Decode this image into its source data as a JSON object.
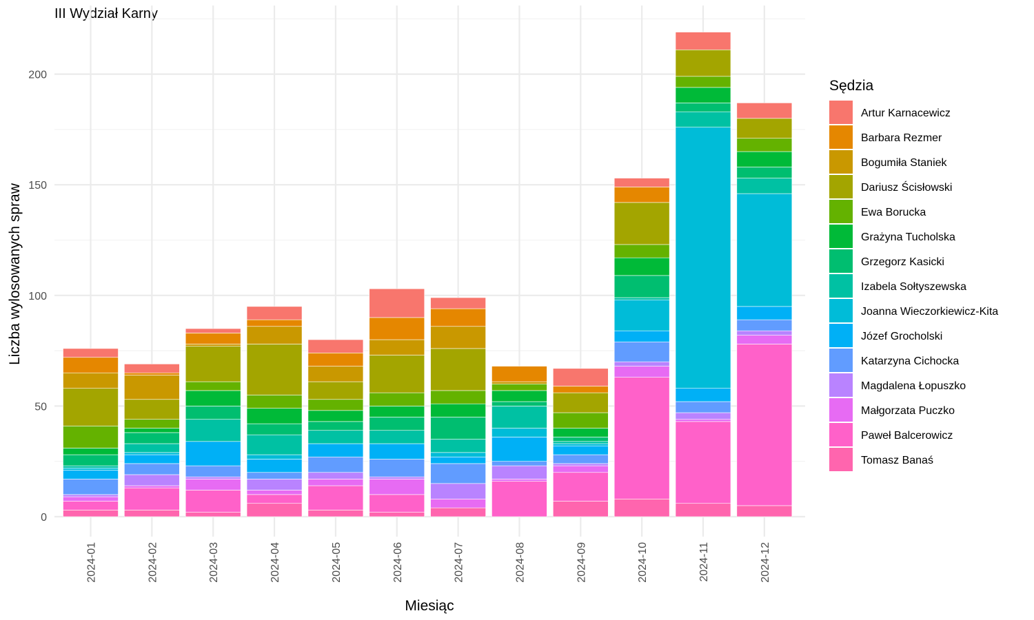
{
  "chart_data": {
    "type": "bar",
    "stacked": true,
    "title": "III Wydział Karny",
    "xlabel": "Miesiąc",
    "ylabel": "Liczba wylosowanych spraw",
    "ylim": [
      0,
      220
    ],
    "yticks": [
      0,
      50,
      100,
      150,
      200
    ],
    "grid": true,
    "legend_position": "right",
    "legend_title": "Sędzia",
    "categories": [
      "2024-01",
      "2024-02",
      "2024-03",
      "2024-04",
      "2024-05",
      "2024-06",
      "2024-07",
      "2024-08",
      "2024-09",
      "2024-10",
      "2024-11",
      "2024-12"
    ],
    "series": [
      {
        "name": "Tomasz Banaś",
        "color": "#FF65AE",
        "values": [
          3,
          3,
          2,
          6,
          3,
          2,
          4,
          0,
          7,
          8,
          6,
          5
        ]
      },
      {
        "name": "Paweł Balcerowicz",
        "color": "#FF61C9",
        "values": [
          4,
          10,
          10,
          4,
          11,
          8,
          0,
          16,
          13,
          55,
          37,
          73
        ]
      },
      {
        "name": "Małgorzata Puczko",
        "color": "#E76BF3",
        "values": [
          2,
          1,
          5,
          2,
          3,
          7,
          4,
          1,
          3,
          5,
          1,
          4
        ]
      },
      {
        "name": "Magdalena Łopuszko",
        "color": "#B983FF",
        "values": [
          1,
          5,
          1,
          5,
          3,
          1,
          7,
          6,
          1,
          2,
          3,
          2
        ]
      },
      {
        "name": "Katarzyna Cichocka",
        "color": "#619CFF",
        "values": [
          7,
          5,
          5,
          3,
          7,
          8,
          9,
          2,
          4,
          9,
          5,
          5
        ]
      },
      {
        "name": "Józef Grocholski",
        "color": "#00B0F6",
        "values": [
          4,
          4,
          11,
          6,
          6,
          7,
          3,
          11,
          4,
          5,
          6,
          6
        ]
      },
      {
        "name": "Joanna Wieczorkiewicz-Kita",
        "color": "#00BCD8",
        "values": [
          1,
          1,
          0,
          2,
          0,
          0,
          2,
          4,
          1,
          14,
          118,
          51
        ]
      },
      {
        "name": "Izabela Sołtyszewska",
        "color": "#00C1A3",
        "values": [
          1,
          4,
          10,
          9,
          6,
          6,
          6,
          10,
          1,
          1,
          7,
          7
        ]
      },
      {
        "name": "Grzegorz Kasicki",
        "color": "#00BE70",
        "values": [
          5,
          5,
          6,
          5,
          4,
          6,
          10,
          2,
          2,
          10,
          4,
          5
        ]
      },
      {
        "name": "Grażyna Tucholska",
        "color": "#00BA38",
        "values": [
          3,
          2,
          7,
          7,
          5,
          5,
          6,
          5,
          4,
          8,
          7,
          7
        ]
      },
      {
        "name": "Ewa Borucka",
        "color": "#64B200",
        "values": [
          10,
          4,
          4,
          6,
          5,
          6,
          6,
          3,
          7,
          6,
          5,
          6
        ]
      },
      {
        "name": "Dariusz Ścisłowski",
        "color": "#A3A500",
        "values": [
          17,
          9,
          16,
          23,
          8,
          17,
          19,
          0,
          9,
          19,
          12,
          9
        ]
      },
      {
        "name": "Bogumiła Staniek",
        "color": "#C99800",
        "values": [
          7,
          11,
          1,
          8,
          7,
          7,
          10,
          1,
          0,
          0,
          0,
          0
        ]
      },
      {
        "name": "Barbara Rezmer",
        "color": "#E58700",
        "values": [
          7,
          1,
          5,
          3,
          6,
          10,
          8,
          7,
          3,
          7,
          0,
          0
        ]
      },
      {
        "name": "Artur Karnacewicz",
        "color": "#F8766D",
        "values": [
          4,
          4,
          2,
          6,
          6,
          13,
          5,
          0,
          8,
          4,
          8,
          7
        ]
      }
    ]
  }
}
